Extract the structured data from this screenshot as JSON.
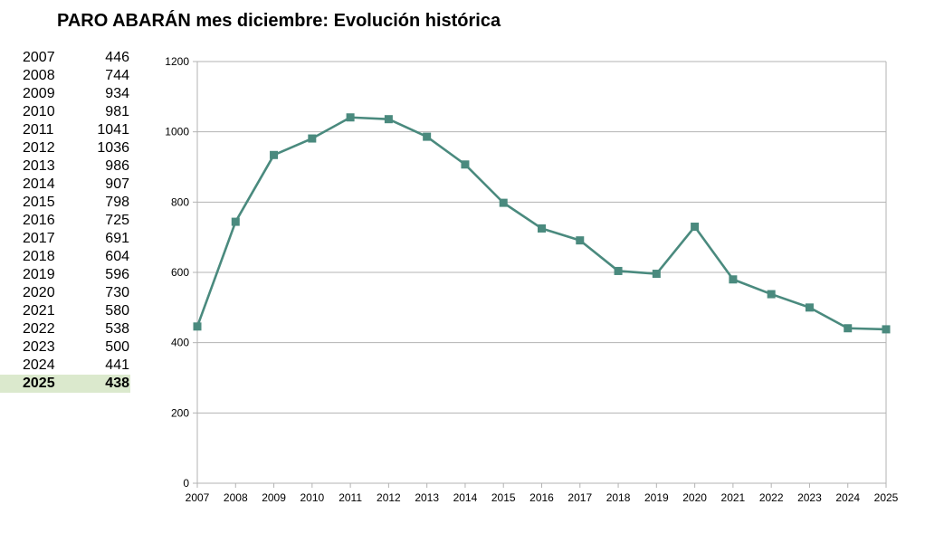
{
  "title": "PARO ABARÁN mes diciembre: Evolución histórica",
  "table": {
    "rows": [
      {
        "year": "2007",
        "value": "446"
      },
      {
        "year": "2008",
        "value": "744"
      },
      {
        "year": "2009",
        "value": "934"
      },
      {
        "year": "2010",
        "value": "981"
      },
      {
        "year": "2011",
        "value": "1041"
      },
      {
        "year": "2012",
        "value": "1036"
      },
      {
        "year": "2013",
        "value": "986"
      },
      {
        "year": "2014",
        "value": "907"
      },
      {
        "year": "2015",
        "value": "798"
      },
      {
        "year": "2016",
        "value": "725"
      },
      {
        "year": "2017",
        "value": "691"
      },
      {
        "year": "2018",
        "value": "604"
      },
      {
        "year": "2019",
        "value": "596"
      },
      {
        "year": "2020",
        "value": "730"
      },
      {
        "year": "2021",
        "value": "580"
      },
      {
        "year": "2022",
        "value": "538"
      },
      {
        "year": "2023",
        "value": "500"
      },
      {
        "year": "2024",
        "value": "441"
      },
      {
        "year": "2025",
        "value": "438"
      }
    ],
    "highlight_color": "#dbe9cd"
  },
  "chart_data": {
    "type": "line",
    "x": [
      "2007",
      "2008",
      "2009",
      "2010",
      "2011",
      "2012",
      "2013",
      "2014",
      "2015",
      "2016",
      "2017",
      "2018",
      "2019",
      "2020",
      "2021",
      "2022",
      "2023",
      "2024",
      "2025"
    ],
    "series": [
      {
        "values": [
          446,
          744,
          934,
          981,
          1041,
          1036,
          986,
          907,
          798,
          725,
          691,
          604,
          596,
          730,
          580,
          538,
          500,
          441,
          438
        ],
        "color": "#4a8a7e",
        "marker": "square"
      }
    ],
    "ylim": [
      0,
      1200
    ],
    "yticks": [
      0,
      200,
      400,
      600,
      800,
      1000,
      1200
    ],
    "grid": true,
    "legend": "none"
  }
}
